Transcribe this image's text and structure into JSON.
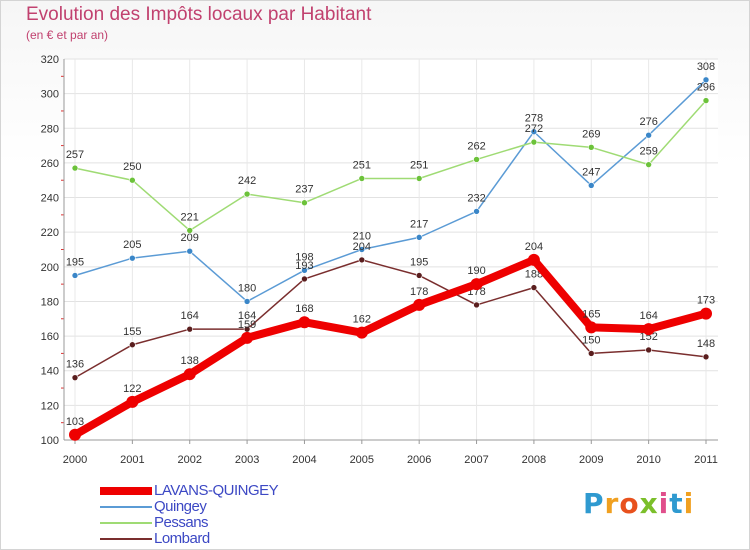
{
  "title": "Evolution des Impôts locaux par Habitant",
  "subtitle": "(en € et par an)",
  "logo": {
    "text": "Proxiti",
    "letters": [
      "P",
      "r",
      "o",
      "x",
      "i",
      "t",
      "i"
    ]
  },
  "chart_data": {
    "type": "line",
    "title": "Evolution des Impôts locaux par Habitant",
    "subtitle": "(en € et par an)",
    "x": [
      2000,
      2001,
      2002,
      2003,
      2004,
      2005,
      2006,
      2007,
      2008,
      2009,
      2010,
      2011
    ],
    "ylim": [
      100,
      320
    ],
    "yticks": [
      100,
      120,
      140,
      160,
      180,
      200,
      220,
      240,
      260,
      280,
      300,
      320
    ],
    "grid": true,
    "legend_position": "bottom-left",
    "series": [
      {
        "name": "Quingey",
        "color": "#5b9bd5",
        "marker": "#3a86c8",
        "values": [
          195,
          205,
          209,
          180,
          198,
          210,
          217,
          232,
          278,
          247,
          276,
          308
        ]
      },
      {
        "name": "Pessans",
        "color": "#9fdb74",
        "marker": "#6cc23a",
        "values": [
          257,
          250,
          221,
          242,
          237,
          251,
          251,
          262,
          272,
          269,
          259,
          296
        ]
      },
      {
        "name": "Lombard",
        "color": "#7a2e2e",
        "marker": "#5a1e1e",
        "values": [
          136,
          155,
          164,
          164,
          193,
          204,
          195,
          178,
          188,
          150,
          152,
          148
        ]
      },
      {
        "name": "LAVANS-QUINGEY",
        "color": "#ee0000",
        "marker": "#ee0000",
        "values": [
          103,
          122,
          138,
          159,
          168,
          162,
          178,
          190,
          204,
          165,
          164,
          173
        ]
      }
    ]
  },
  "legend": [
    {
      "name": "LAVANS-QUINGEY",
      "color": "#ee0000"
    },
    {
      "name": "Quingey",
      "color": "#5b9bd5"
    },
    {
      "name": "Pessans",
      "color": "#9fdb74"
    },
    {
      "name": "Lombard",
      "color": "#7a2e2e"
    }
  ]
}
